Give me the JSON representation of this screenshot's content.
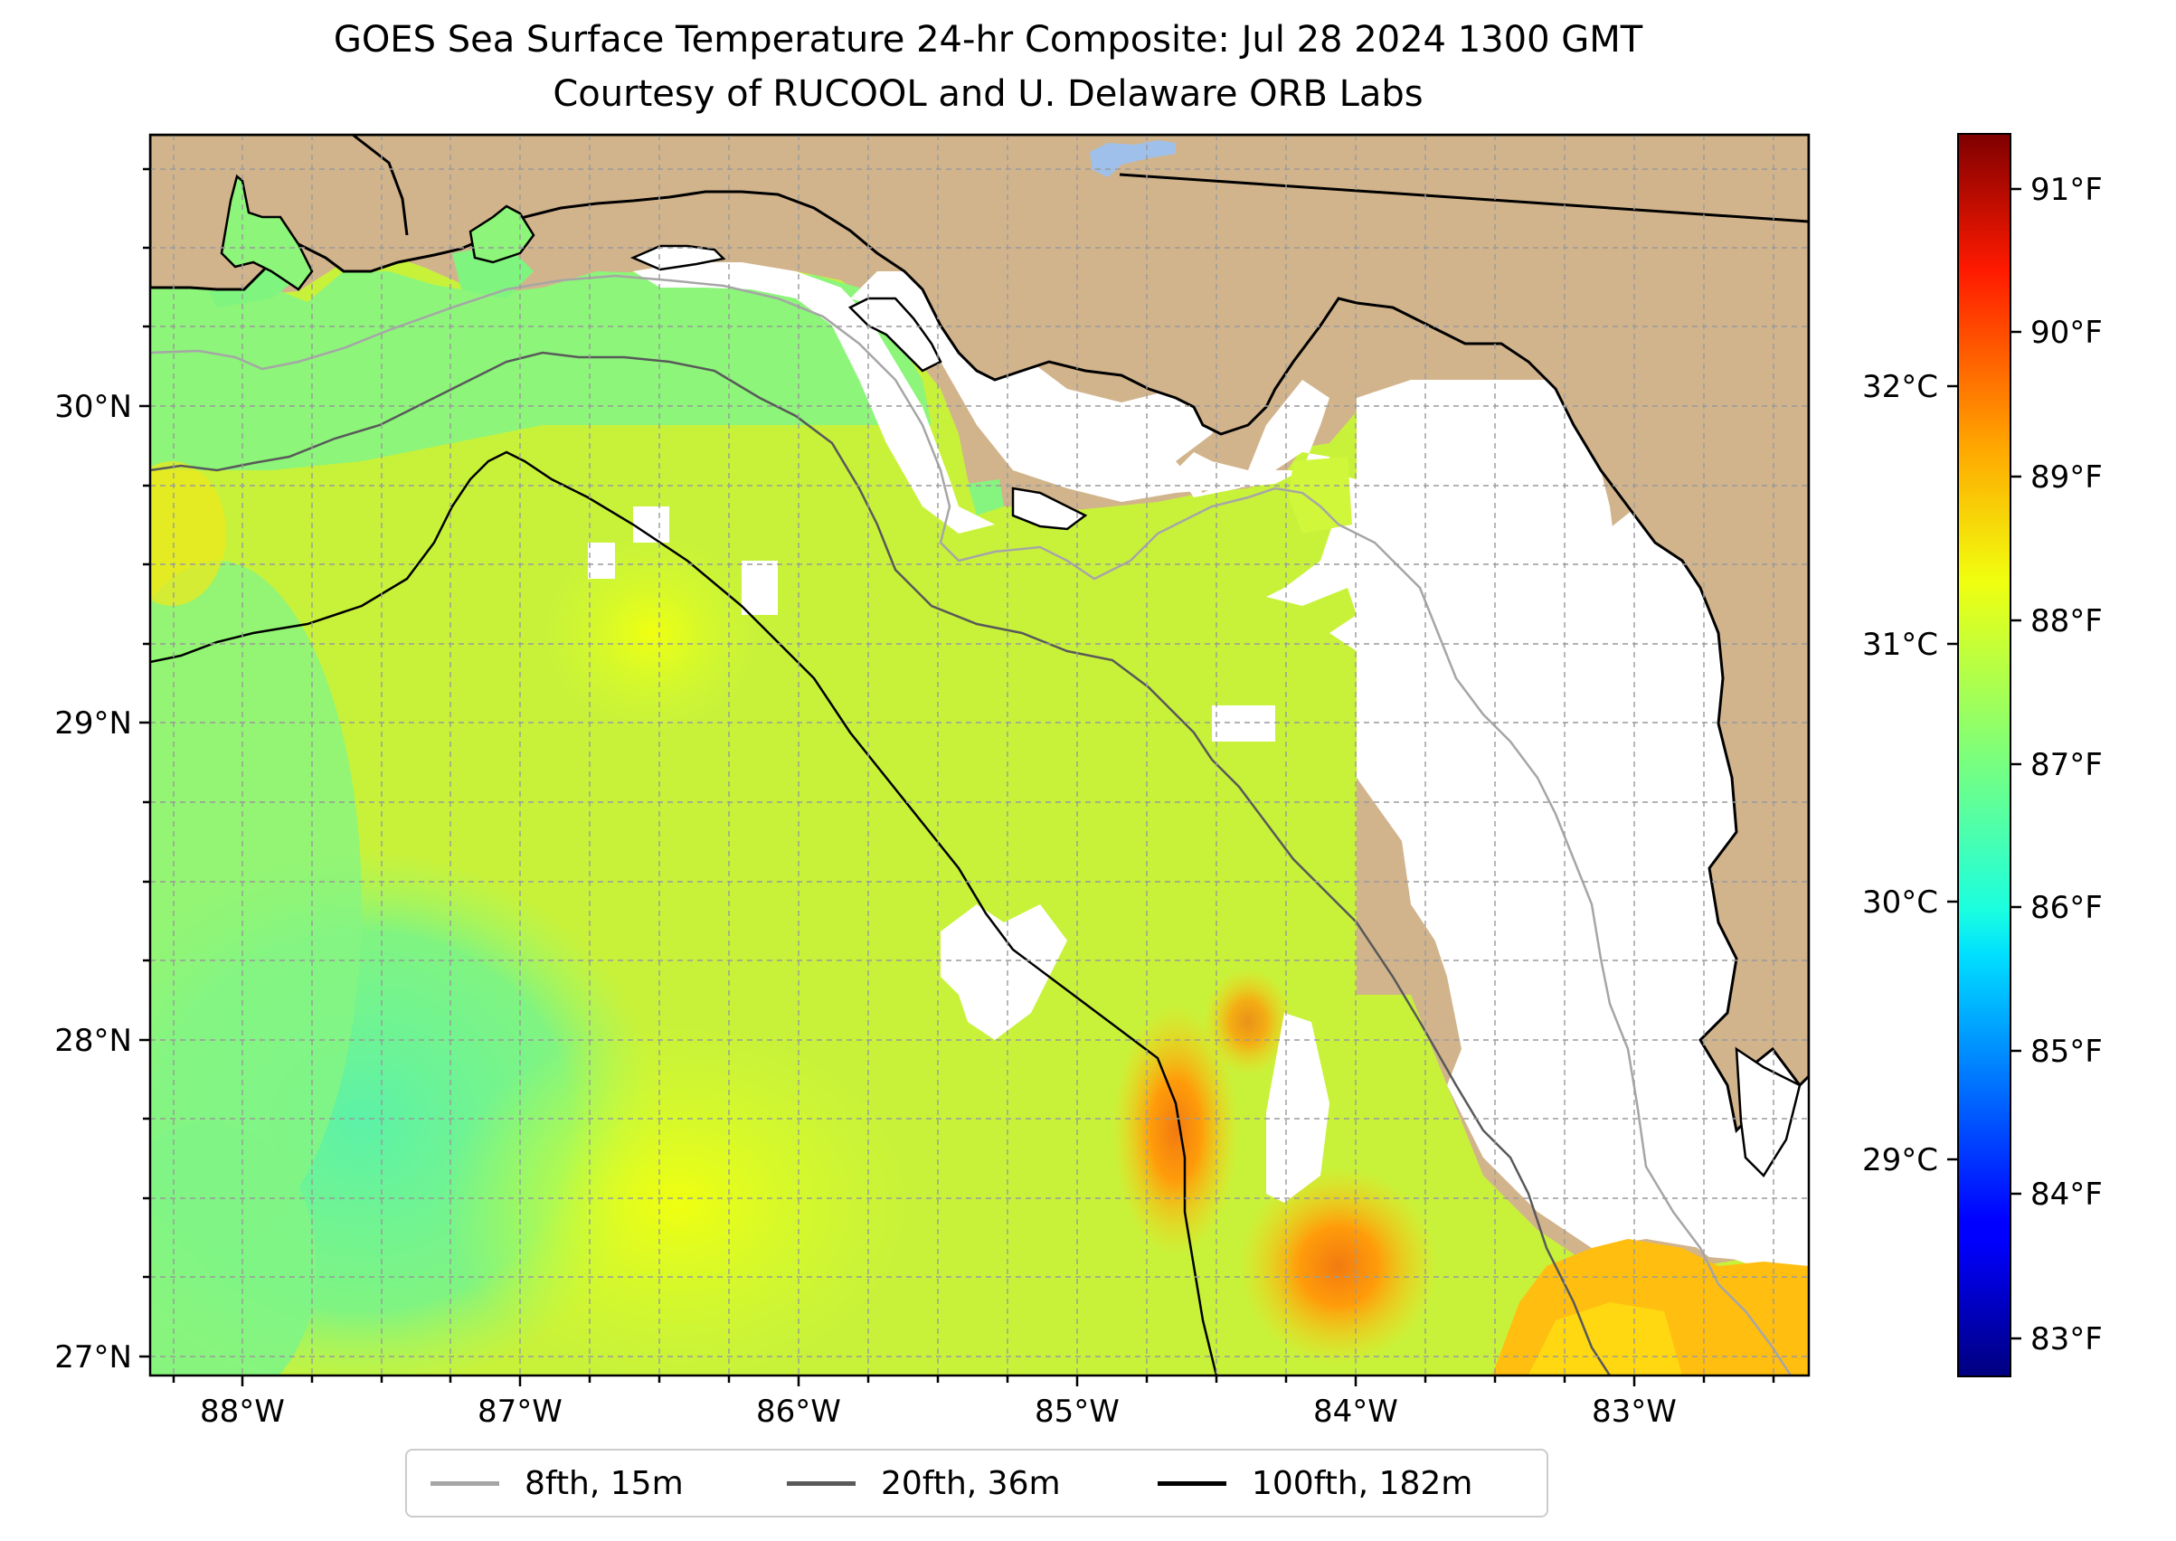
{
  "title": "GOES Sea Surface Temperature 24-hr Composite: Jul 28 2024 1300 GMT",
  "subtitle": "Courtesy of RUCOOL and U. Delaware ORB Labs",
  "map": {
    "lon_range": [
      -88.33,
      -82.38
    ],
    "lat_range": [
      26.93,
      30.85
    ],
    "lat_ticks": [
      "30°N",
      "29°N",
      "28°N",
      "27°N"
    ],
    "lon_ticks": [
      "88°W",
      "87°W",
      "86°W",
      "85°W",
      "84°W",
      "83°W"
    ],
    "land_color": "#d2b48c",
    "no_data_color": "#ffffff"
  },
  "colorbar": {
    "colormap": "jet",
    "fahrenheit_ticks": [
      "91°F",
      "90°F",
      "89°F",
      "88°F",
      "87°F",
      "86°F",
      "85°F",
      "84°F",
      "83°F"
    ],
    "celsius_ticks": [
      "32°C",
      "31°C",
      "30°C",
      "29°C"
    ],
    "range_f": [
      82.7,
      91.3
    ]
  },
  "legend": {
    "items": [
      {
        "label": "8fth, 15m",
        "color": "#a6a6a6"
      },
      {
        "label": "20fth, 36m",
        "color": "#595959"
      },
      {
        "label": "100fth, 182m",
        "color": "#000000"
      }
    ]
  }
}
